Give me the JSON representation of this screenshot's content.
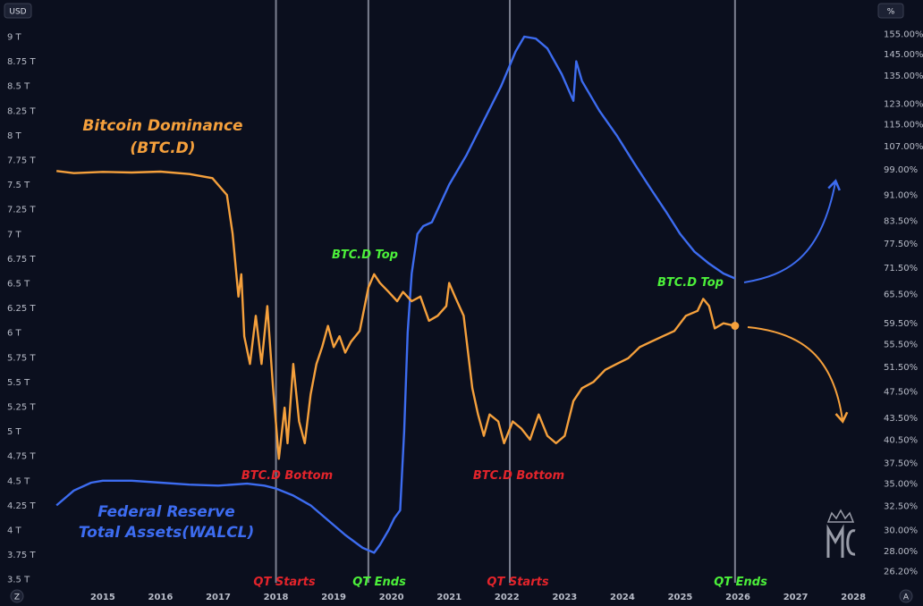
{
  "chart_data": {
    "type": "line",
    "axes": {
      "left": {
        "unit_badge": "USD",
        "ticks": [
          "9 T",
          "8.75 T",
          "8.5 T",
          "8.25 T",
          "8 T",
          "7.75 T",
          "7.5 T",
          "7.25 T",
          "7 T",
          "6.75 T",
          "6.5 T",
          "6.25 T",
          "6 T",
          "5.75 T",
          "5.5 T",
          "5.25 T",
          "5 T",
          "4.75 T",
          "4.5 T",
          "4.25 T",
          "4 T",
          "3.75 T",
          "3.5 T"
        ],
        "range": [
          3.45,
          9.1
        ]
      },
      "right": {
        "unit_badge": "%",
        "scale": "log",
        "ticks": [
          "155.00%",
          "145.00%",
          "135.00%",
          "123.00%",
          "115.00%",
          "107.00%",
          "99.00%",
          "91.00%",
          "83.50%",
          "77.50%",
          "71.50%",
          "65.50%",
          "59.50%",
          "55.50%",
          "51.50%",
          "47.50%",
          "43.50%",
          "40.50%",
          "37.50%",
          "35.00%",
          "32.50%",
          "30.00%",
          "28.00%",
          "26.20%"
        ]
      },
      "x": {
        "ticks": [
          "2015",
          "2016",
          "2017",
          "2018",
          "2019",
          "2020",
          "2021",
          "2022",
          "2023",
          "2024",
          "2025",
          "2026",
          "2027",
          "2028"
        ],
        "range": [
          2014.15,
          2028.4
        ]
      },
      "corner_left": "Z",
      "corner_right": "A"
    },
    "series": [
      {
        "name": "Federal Reserve Total Assets(WALCL)",
        "color": "#3d6cf0",
        "axis": "left",
        "points": [
          [
            2014.2,
            4.25
          ],
          [
            2014.5,
            4.4
          ],
          [
            2014.8,
            4.48
          ],
          [
            2015.0,
            4.5
          ],
          [
            2015.5,
            4.5
          ],
          [
            2016.0,
            4.48
          ],
          [
            2016.5,
            4.46
          ],
          [
            2017.0,
            4.45
          ],
          [
            2017.5,
            4.47
          ],
          [
            2017.8,
            4.45
          ],
          [
            2018.0,
            4.42
          ],
          [
            2018.3,
            4.35
          ],
          [
            2018.6,
            4.25
          ],
          [
            2018.9,
            4.1
          ],
          [
            2019.2,
            3.95
          ],
          [
            2019.5,
            3.82
          ],
          [
            2019.7,
            3.77
          ],
          [
            2019.8,
            3.85
          ],
          [
            2019.95,
            4.0
          ],
          [
            2020.05,
            4.12
          ],
          [
            2020.15,
            4.2
          ],
          [
            2020.22,
            5.0
          ],
          [
            2020.28,
            6.0
          ],
          [
            2020.35,
            6.6
          ],
          [
            2020.45,
            7.0
          ],
          [
            2020.55,
            7.08
          ],
          [
            2020.7,
            7.12
          ],
          [
            2021.0,
            7.5
          ],
          [
            2021.3,
            7.8
          ],
          [
            2021.6,
            8.15
          ],
          [
            2021.9,
            8.5
          ],
          [
            2022.15,
            8.85
          ],
          [
            2022.3,
            9.0
          ],
          [
            2022.5,
            8.98
          ],
          [
            2022.7,
            8.88
          ],
          [
            2022.95,
            8.62
          ],
          [
            2023.15,
            8.35
          ],
          [
            2023.2,
            8.75
          ],
          [
            2023.3,
            8.55
          ],
          [
            2023.6,
            8.25
          ],
          [
            2023.9,
            8.0
          ],
          [
            2024.2,
            7.72
          ],
          [
            2024.5,
            7.45
          ],
          [
            2024.75,
            7.23
          ],
          [
            2025.0,
            7.0
          ],
          [
            2025.25,
            6.82
          ],
          [
            2025.5,
            6.7
          ],
          [
            2025.75,
            6.6
          ],
          [
            2025.95,
            6.55
          ]
        ]
      },
      {
        "name": "Bitcoin Dominance (BTC.D)",
        "color": "#f5a03c",
        "axis": "right",
        "points": [
          [
            2014.2,
            98.5
          ],
          [
            2014.5,
            97.8
          ],
          [
            2015.0,
            98.2
          ],
          [
            2015.5,
            98.0
          ],
          [
            2016.0,
            98.3
          ],
          [
            2016.5,
            97.5
          ],
          [
            2016.9,
            96.2
          ],
          [
            2017.15,
            91.0
          ],
          [
            2017.25,
            80.0
          ],
          [
            2017.35,
            65.0
          ],
          [
            2017.4,
            70.0
          ],
          [
            2017.45,
            57.0
          ],
          [
            2017.55,
            52.0
          ],
          [
            2017.65,
            61.0
          ],
          [
            2017.75,
            52.0
          ],
          [
            2017.85,
            63.0
          ],
          [
            2017.95,
            48.0
          ],
          [
            2018.05,
            38.0
          ],
          [
            2018.15,
            45.0
          ],
          [
            2018.2,
            40.0
          ],
          [
            2018.3,
            52.0
          ],
          [
            2018.4,
            43.0
          ],
          [
            2018.5,
            40.0
          ],
          [
            2018.6,
            47.0
          ],
          [
            2018.7,
            52.0
          ],
          [
            2018.8,
            55.0
          ],
          [
            2018.9,
            59.0
          ],
          [
            2019.0,
            55.0
          ],
          [
            2019.1,
            57.0
          ],
          [
            2019.2,
            54.0
          ],
          [
            2019.3,
            56.0
          ],
          [
            2019.45,
            58.0
          ],
          [
            2019.6,
            67.0
          ],
          [
            2019.7,
            70.0
          ],
          [
            2019.8,
            68.0
          ],
          [
            2019.95,
            66.0
          ],
          [
            2020.1,
            64.0
          ],
          [
            2020.2,
            66.0
          ],
          [
            2020.35,
            64.0
          ],
          [
            2020.5,
            65.0
          ],
          [
            2020.65,
            60.0
          ],
          [
            2020.8,
            61.0
          ],
          [
            2020.95,
            63.0
          ],
          [
            2021.0,
            68.0
          ],
          [
            2021.1,
            65.0
          ],
          [
            2021.25,
            61.0
          ],
          [
            2021.4,
            48.0
          ],
          [
            2021.5,
            44.0
          ],
          [
            2021.6,
            41.0
          ],
          [
            2021.7,
            44.0
          ],
          [
            2021.85,
            43.0
          ],
          [
            2021.95,
            40.0
          ],
          [
            2022.1,
            43.0
          ],
          [
            2022.25,
            42.0
          ],
          [
            2022.4,
            40.5
          ],
          [
            2022.55,
            44.0
          ],
          [
            2022.7,
            41.0
          ],
          [
            2022.85,
            40.0
          ],
          [
            2023.0,
            41.0
          ],
          [
            2023.15,
            46.0
          ],
          [
            2023.3,
            48.0
          ],
          [
            2023.5,
            49.0
          ],
          [
            2023.7,
            51.0
          ],
          [
            2023.9,
            52.0
          ],
          [
            2024.1,
            53.0
          ],
          [
            2024.3,
            55.0
          ],
          [
            2024.5,
            56.0
          ],
          [
            2024.7,
            57.0
          ],
          [
            2024.9,
            58.0
          ],
          [
            2025.1,
            61.0
          ],
          [
            2025.3,
            62.0
          ],
          [
            2025.4,
            64.5
          ],
          [
            2025.5,
            63.0
          ],
          [
            2025.6,
            58.5
          ],
          [
            2025.75,
            59.5
          ],
          [
            2025.95,
            59.0
          ]
        ]
      }
    ],
    "vlines": [
      2018.0,
      2019.6,
      2022.05,
      2025.95
    ],
    "projection_arrows": [
      {
        "series": "WALCL",
        "direction": "up",
        "color": "#3d6cf0"
      },
      {
        "series": "BTC.D",
        "direction": "down",
        "color": "#f5a03c"
      }
    ],
    "end_marker": {
      "x": 2025.95,
      "value": 59.0
    }
  },
  "annotations": {
    "btcd_title_1": "Bitcoin Dominance",
    "btcd_title_2": "(BTC.D)",
    "walcl_title_1": "Federal Reserve",
    "walcl_title_2": "Total Assets(WALCL)",
    "btcd_top_1": "BTC.D Top",
    "btcd_top_2": "BTC.D Top",
    "btcd_bottom_1": "BTC.D Bottom",
    "btcd_bottom_2": "BTC.D Bottom",
    "qt_starts_1": "QT Starts",
    "qt_ends_1": "QT Ends",
    "qt_starts_2": "QT Starts",
    "qt_ends_2": "QT Ends"
  },
  "colors": {
    "background": "#0b0f1e",
    "orange": "#f5a03c",
    "blue": "#3d6cf0",
    "red": "#e3242b",
    "green": "#4cf03a",
    "vline": "#7c8090"
  },
  "watermark_icon": "crowned-mc-logo"
}
